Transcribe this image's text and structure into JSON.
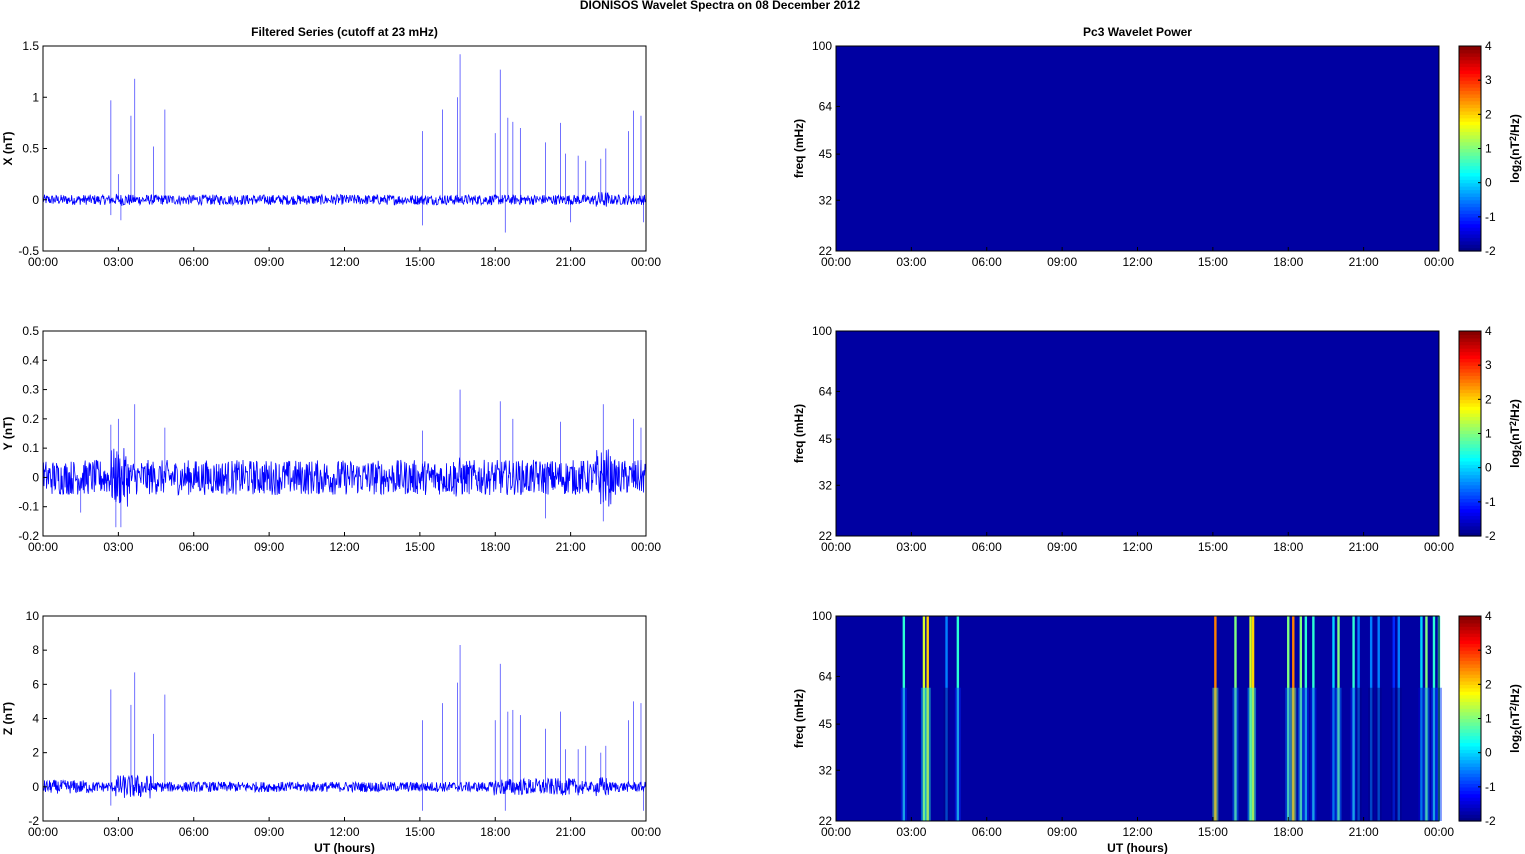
{
  "page": {
    "title": "DIONISOS Wavelet Spectra on 08 December  2012"
  },
  "chart_data": [
    {
      "type": "line",
      "title": "Filtered Series (cutoff at 23 mHz)",
      "xlabel": "",
      "ylabel": "X (nT)",
      "xlim": [
        "00:00",
        "24:00"
      ],
      "ylim": [
        -0.5,
        1.5
      ],
      "yticks": [
        "-0.5",
        "0",
        "0.5",
        "1",
        "1.5"
      ],
      "xticks": [
        "00:00",
        "03:00",
        "06:00",
        "09:00",
        "12:00",
        "15:00",
        "18:00",
        "21:00",
        "00:00"
      ],
      "color": "#0000ff",
      "noise_band": 0.05,
      "bursts": [
        [
          2.9,
          3.5,
          0.06
        ],
        [
          4.2,
          4.4,
          0.04
        ],
        [
          22.0,
          22.5,
          0.08
        ]
      ],
      "spikes": [
        [
          2.7,
          0.97
        ],
        [
          3.0,
          0.25
        ],
        [
          3.5,
          0.82
        ],
        [
          3.65,
          1.18
        ],
        [
          4.4,
          0.52
        ],
        [
          4.85,
          0.88
        ],
        [
          15.1,
          0.67
        ],
        [
          15.9,
          0.88
        ],
        [
          16.5,
          1.0
        ],
        [
          16.6,
          1.42
        ],
        [
          18.0,
          0.65
        ],
        [
          18.2,
          1.27
        ],
        [
          18.5,
          0.8
        ],
        [
          18.7,
          0.76
        ],
        [
          19.0,
          0.7
        ],
        [
          20.0,
          0.56
        ],
        [
          20.6,
          0.75
        ],
        [
          20.8,
          0.45
        ],
        [
          21.3,
          0.43
        ],
        [
          21.6,
          0.38
        ],
        [
          22.2,
          0.4
        ],
        [
          22.4,
          0.5
        ],
        [
          23.3,
          0.67
        ],
        [
          23.5,
          0.87
        ],
        [
          23.8,
          0.82
        ],
        [
          24.0,
          0.75
        ]
      ],
      "neg_spikes": [
        [
          2.7,
          -0.15
        ],
        [
          3.1,
          -0.2
        ],
        [
          15.1,
          -0.25
        ],
        [
          18.4,
          -0.32
        ],
        [
          21.0,
          -0.22
        ],
        [
          23.9,
          -0.22
        ]
      ]
    },
    {
      "type": "line",
      "title": "",
      "xlabel": "",
      "ylabel": "Y (nT)",
      "xlim": [
        "00:00",
        "24:00"
      ],
      "ylim": [
        -0.2,
        0.5
      ],
      "yticks": [
        "-0.2",
        "-0.1",
        "0",
        "0.1",
        "0.2",
        "0.3",
        "0.4",
        "0.5"
      ],
      "xticks": [
        "00:00",
        "03:00",
        "06:00",
        "09:00",
        "12:00",
        "15:00",
        "18:00",
        "21:00",
        "00:00"
      ],
      "color": "#0000ff",
      "noise_band": 0.06,
      "bursts": [
        [
          2.7,
          3.4,
          0.1
        ],
        [
          22.0,
          22.6,
          0.1
        ],
        [
          16.3,
          16.7,
          0.07
        ]
      ],
      "spikes": [
        [
          2.7,
          0.18
        ],
        [
          3.0,
          0.2
        ],
        [
          3.65,
          0.25
        ],
        [
          4.85,
          0.17
        ],
        [
          15.1,
          0.16
        ],
        [
          16.6,
          0.3
        ],
        [
          18.2,
          0.26
        ],
        [
          18.7,
          0.2
        ],
        [
          20.6,
          0.19
        ],
        [
          22.3,
          0.25
        ],
        [
          23.5,
          0.2
        ],
        [
          23.8,
          0.17
        ]
      ],
      "neg_spikes": [
        [
          1.5,
          -0.12
        ],
        [
          2.9,
          -0.17
        ],
        [
          3.1,
          -0.17
        ],
        [
          20.0,
          -0.14
        ],
        [
          22.3,
          -0.15
        ]
      ]
    },
    {
      "type": "line",
      "title": "",
      "xlabel": "UT (hours)",
      "ylabel": "Z (nT)",
      "xlim": [
        "00:00",
        "24:00"
      ],
      "ylim": [
        -2,
        10
      ],
      "yticks": [
        "-2",
        "0",
        "2",
        "4",
        "6",
        "8",
        "10"
      ],
      "xticks": [
        "00:00",
        "03:00",
        "06:00",
        "09:00",
        "12:00",
        "15:00",
        "18:00",
        "21:00",
        "00:00"
      ],
      "color": "#0000ff",
      "noise_band": 0.3,
      "bursts": [
        [
          0.0,
          2.0,
          0.4
        ],
        [
          2.9,
          4.4,
          0.7
        ],
        [
          17.9,
          21.5,
          0.5
        ],
        [
          22.0,
          22.5,
          0.6
        ]
      ],
      "spikes": [
        [
          2.7,
          5.7
        ],
        [
          3.5,
          4.8
        ],
        [
          3.65,
          6.7
        ],
        [
          4.4,
          3.1
        ],
        [
          4.85,
          5.4
        ],
        [
          15.1,
          3.9
        ],
        [
          15.9,
          4.9
        ],
        [
          16.5,
          6.1
        ],
        [
          16.6,
          8.3
        ],
        [
          18.0,
          3.9
        ],
        [
          18.2,
          7.2
        ],
        [
          18.5,
          4.4
        ],
        [
          18.7,
          4.5
        ],
        [
          19.0,
          4.2
        ],
        [
          20.0,
          3.4
        ],
        [
          20.6,
          4.4
        ],
        [
          20.8,
          2.2
        ],
        [
          21.3,
          2.2
        ],
        [
          21.6,
          2.4
        ],
        [
          22.2,
          2.0
        ],
        [
          22.4,
          2.4
        ],
        [
          23.3,
          3.9
        ],
        [
          23.5,
          5.0
        ],
        [
          23.8,
          4.9
        ],
        [
          24.0,
          4.5
        ]
      ],
      "neg_spikes": [
        [
          2.7,
          -1.1
        ],
        [
          15.1,
          -1.4
        ],
        [
          18.4,
          -1.4
        ],
        [
          23.9,
          -1.4
        ]
      ]
    },
    {
      "type": "heatmap",
      "title": "Pc3 Wavelet Power",
      "xlabel": "",
      "ylabel": "freq (mHz)",
      "yticks": [
        "22",
        "32",
        "45",
        "64",
        "100"
      ],
      "xticks": [
        "00:00",
        "03:00",
        "06:00",
        "09:00",
        "12:00",
        "15:00",
        "18:00",
        "21:00",
        "00:00"
      ],
      "colorbar": {
        "label": "log2(nT2/Hz)",
        "range": [
          -2,
          4
        ],
        "ticks": [
          "-2",
          "-1",
          "0",
          "1",
          "2",
          "3",
          "4"
        ]
      },
      "background_value": -1.8,
      "streaks": []
    },
    {
      "type": "heatmap",
      "title": "",
      "xlabel": "",
      "ylabel": "freq (mHz)",
      "yticks": [
        "22",
        "32",
        "45",
        "64",
        "100"
      ],
      "xticks": [
        "00:00",
        "03:00",
        "06:00",
        "09:00",
        "12:00",
        "15:00",
        "18:00",
        "21:00",
        "00:00"
      ],
      "colorbar": {
        "label": "log2(nT2/Hz)",
        "range": [
          -2,
          4
        ],
        "ticks": [
          "-2",
          "-1",
          "0",
          "1",
          "2",
          "3",
          "4"
        ]
      },
      "background_value": -1.8,
      "streaks": []
    },
    {
      "type": "heatmap",
      "title": "",
      "xlabel": "UT (hours)",
      "ylabel": "freq (mHz)",
      "yticks": [
        "22",
        "32",
        "45",
        "64",
        "100"
      ],
      "xticks": [
        "00:00",
        "03:00",
        "06:00",
        "09:00",
        "12:00",
        "15:00",
        "18:00",
        "21:00",
        "00:00"
      ],
      "colorbar": {
        "label": "log2(nT2/Hz)",
        "range": [
          -2,
          4
        ],
        "ticks": [
          "-2",
          "-1",
          "0",
          "1",
          "2",
          "3",
          "4"
        ]
      },
      "background_value": -1.8,
      "streaks": [
        [
          2.7,
          0.5
        ],
        [
          3.5,
          1.5
        ],
        [
          3.65,
          2.0
        ],
        [
          4.4,
          -0.5
        ],
        [
          4.85,
          0.5
        ],
        [
          15.1,
          2.5
        ],
        [
          15.9,
          1.0
        ],
        [
          16.5,
          1.5
        ],
        [
          16.6,
          2.0
        ],
        [
          18.0,
          1.0
        ],
        [
          18.2,
          2.5
        ],
        [
          18.5,
          1.0
        ],
        [
          18.7,
          0.5
        ],
        [
          19.0,
          0.5
        ],
        [
          19.8,
          0.0
        ],
        [
          20.0,
          1.0
        ],
        [
          20.6,
          0.5
        ],
        [
          20.8,
          -0.5
        ],
        [
          21.3,
          -0.5
        ],
        [
          21.6,
          -0.5
        ],
        [
          22.2,
          -1.0
        ],
        [
          22.4,
          -0.5
        ],
        [
          23.3,
          0.0
        ],
        [
          23.5,
          1.0
        ],
        [
          23.8,
          0.5
        ],
        [
          24.0,
          0.5
        ]
      ]
    }
  ]
}
